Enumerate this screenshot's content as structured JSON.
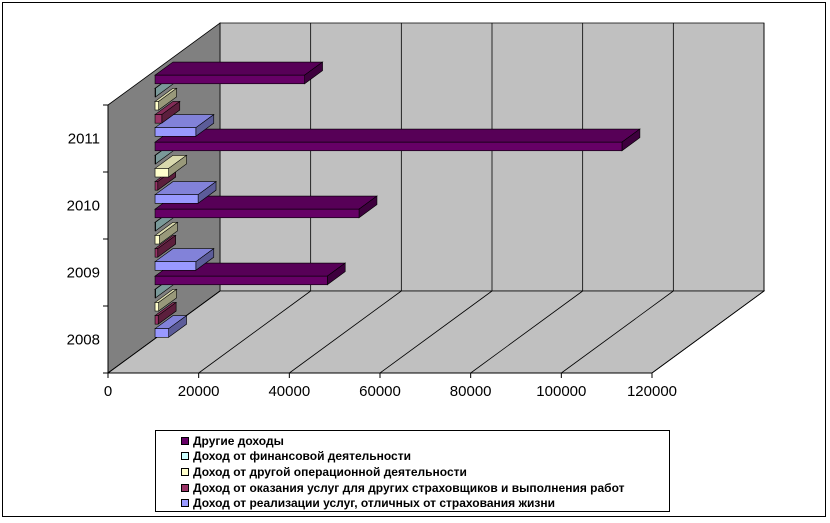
{
  "chart_data": {
    "type": "bar",
    "orientation": "horizontal",
    "style": "3d-clustered",
    "categories": [
      "2008",
      "2009",
      "2010",
      "2011"
    ],
    "series": [
      {
        "name": "Доход от реализации услуг, отличных от страхования жизни",
        "color": "#9999FF",
        "values": [
          3000,
          9000,
          9500,
          9000
        ]
      },
      {
        "name": "Доход от оказания услуг для других страховщиков и выполнения работ",
        "color": "#993366",
        "values": [
          700,
          600,
          600,
          1500
        ]
      },
      {
        "name": "Доход от другой операционной деятельности",
        "color": "#FFFFCC",
        "values": [
          800,
          1000,
          3000,
          800
        ]
      },
      {
        "name": "Доход от финансовой деятельности",
        "color": "#CCFFFF",
        "values": [
          100,
          100,
          100,
          100
        ]
      },
      {
        "name": "Другие доходы",
        "color": "#660066",
        "values": [
          38000,
          45000,
          103000,
          33000
        ]
      }
    ],
    "xlim": [
      0,
      120000
    ],
    "xticks": [
      "0",
      "20000",
      "40000",
      "60000",
      "80000",
      "100000",
      "120000"
    ],
    "grid": true,
    "legend": "bottom",
    "title": "",
    "xlabel": "",
    "ylabel": ""
  }
}
